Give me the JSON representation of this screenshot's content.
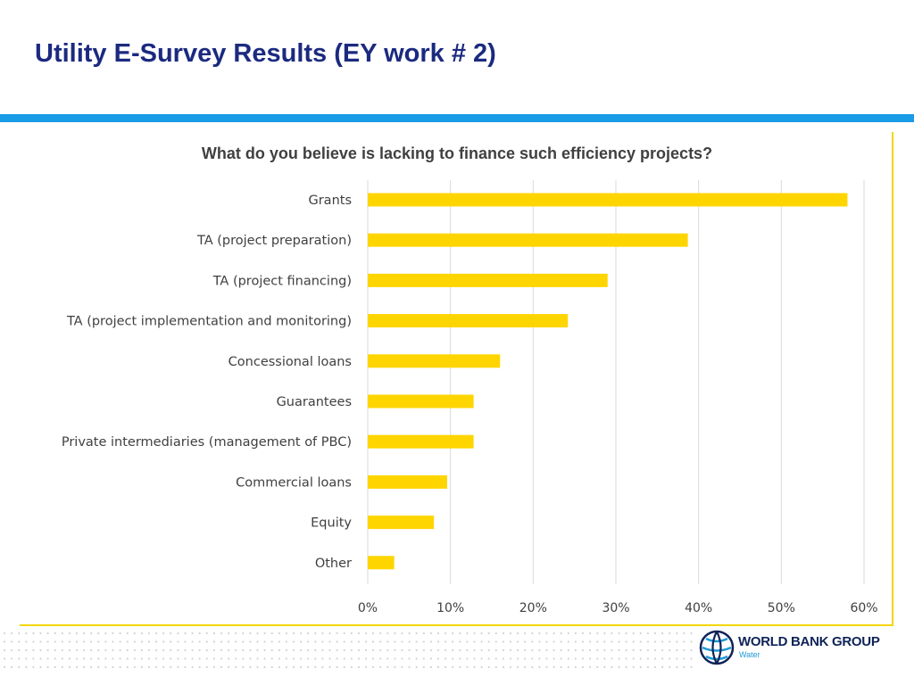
{
  "slide": {
    "title": "Utility E-Survey Results (EY work # 2)"
  },
  "colors": {
    "title": "#1b2a80",
    "accent_rule": "#1a9be6",
    "panel_border": "#f2d700",
    "bar": "#ffd500",
    "text": "#404040",
    "grid": "#d9d9d9"
  },
  "chart_data": {
    "type": "bar",
    "orientation": "horizontal",
    "title": "What do you believe is lacking to finance such efficiency projects?",
    "categories": [
      "Grants",
      "TA (project preparation)",
      "TA (project financing)",
      "TA (project implementation and monitoring)",
      "Concessional loans",
      "Guarantees",
      "Private intermediaries (management of PBC)",
      "Commercial loans",
      "Equity",
      "Other"
    ],
    "values": [
      58,
      38.7,
      29,
      24.2,
      16,
      12.8,
      12.8,
      9.6,
      8,
      3.2
    ],
    "xlim": [
      0,
      60
    ],
    "xticks": [
      "0%",
      "10%",
      "20%",
      "30%",
      "40%",
      "50%",
      "60%"
    ],
    "grid": true,
    "legend": "none"
  },
  "logo": {
    "wordmark": "WORLD BANK GROUP",
    "sub": "Water",
    "icon": "globe-icon"
  }
}
